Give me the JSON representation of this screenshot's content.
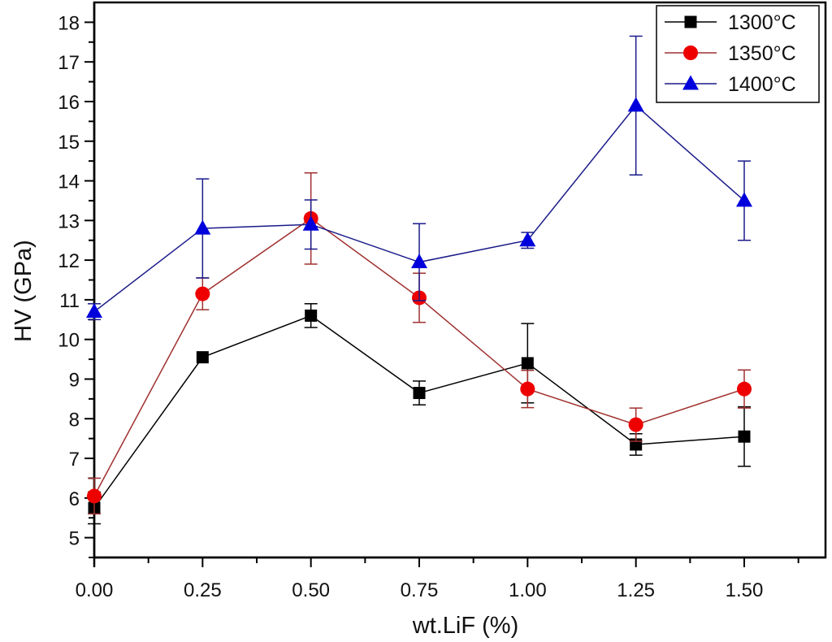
{
  "chart_data": {
    "type": "line",
    "title": "",
    "xlabel": "wt.LiF (%)",
    "ylabel": "HV (GPa)",
    "x": [
      0.0,
      0.25,
      0.5,
      0.75,
      1.0,
      1.25,
      1.5
    ],
    "xlim": [
      0.0,
      1.6875
    ],
    "ylim": [
      4.5,
      18.5
    ],
    "x_ticks": [
      0.0,
      0.25,
      0.5,
      0.75,
      1.0,
      1.25,
      1.5
    ],
    "x_tick_labels": [
      "0.00",
      "0.25",
      "0.50",
      "0.75",
      "1.00",
      "1.25",
      "1.50"
    ],
    "x_minor_ticks": [
      0.125,
      0.375,
      0.625,
      0.875,
      1.125,
      1.375,
      1.625
    ],
    "y_ticks": [
      5,
      6,
      7,
      8,
      9,
      10,
      11,
      12,
      13,
      14,
      15,
      16,
      17,
      18
    ],
    "y_tick_labels": [
      "5",
      "6",
      "7",
      "8",
      "9",
      "10",
      "11",
      "12",
      "13",
      "14",
      "15",
      "16",
      "17",
      "18"
    ],
    "y_minor_ticks": [
      4.5,
      5.5,
      6.5,
      7.5,
      8.5,
      9.5,
      10.5,
      11.5,
      12.5,
      13.5,
      14.5,
      15.5,
      16.5,
      17.5
    ],
    "grid": false,
    "legend_position": "top-right",
    "series": [
      {
        "name": "1300°C",
        "color": "#000000",
        "line_color": "#000000",
        "marker": "square",
        "values": [
          5.75,
          9.55,
          10.6,
          8.65,
          9.4,
          7.35,
          7.55
        ],
        "errors": [
          0.4,
          0.0,
          0.3,
          0.3,
          1.0,
          0.27,
          0.75
        ]
      },
      {
        "name": "1350°C",
        "color": "#ee0000",
        "line_color": "#a03030",
        "marker": "circle",
        "values": [
          6.05,
          11.15,
          13.05,
          11.05,
          8.75,
          7.85,
          8.75
        ],
        "errors": [
          0.45,
          0.4,
          1.15,
          0.62,
          0.47,
          0.42,
          0.48
        ]
      },
      {
        "name": "1400°C",
        "color": "#0000dd",
        "line_color": "#1a1a8a",
        "marker": "triangle",
        "values": [
          10.7,
          12.8,
          12.9,
          11.95,
          12.5,
          15.9,
          13.5
        ],
        "errors": [
          0.2,
          1.25,
          0.62,
          0.97,
          0.2,
          1.75,
          1.0
        ]
      }
    ]
  }
}
